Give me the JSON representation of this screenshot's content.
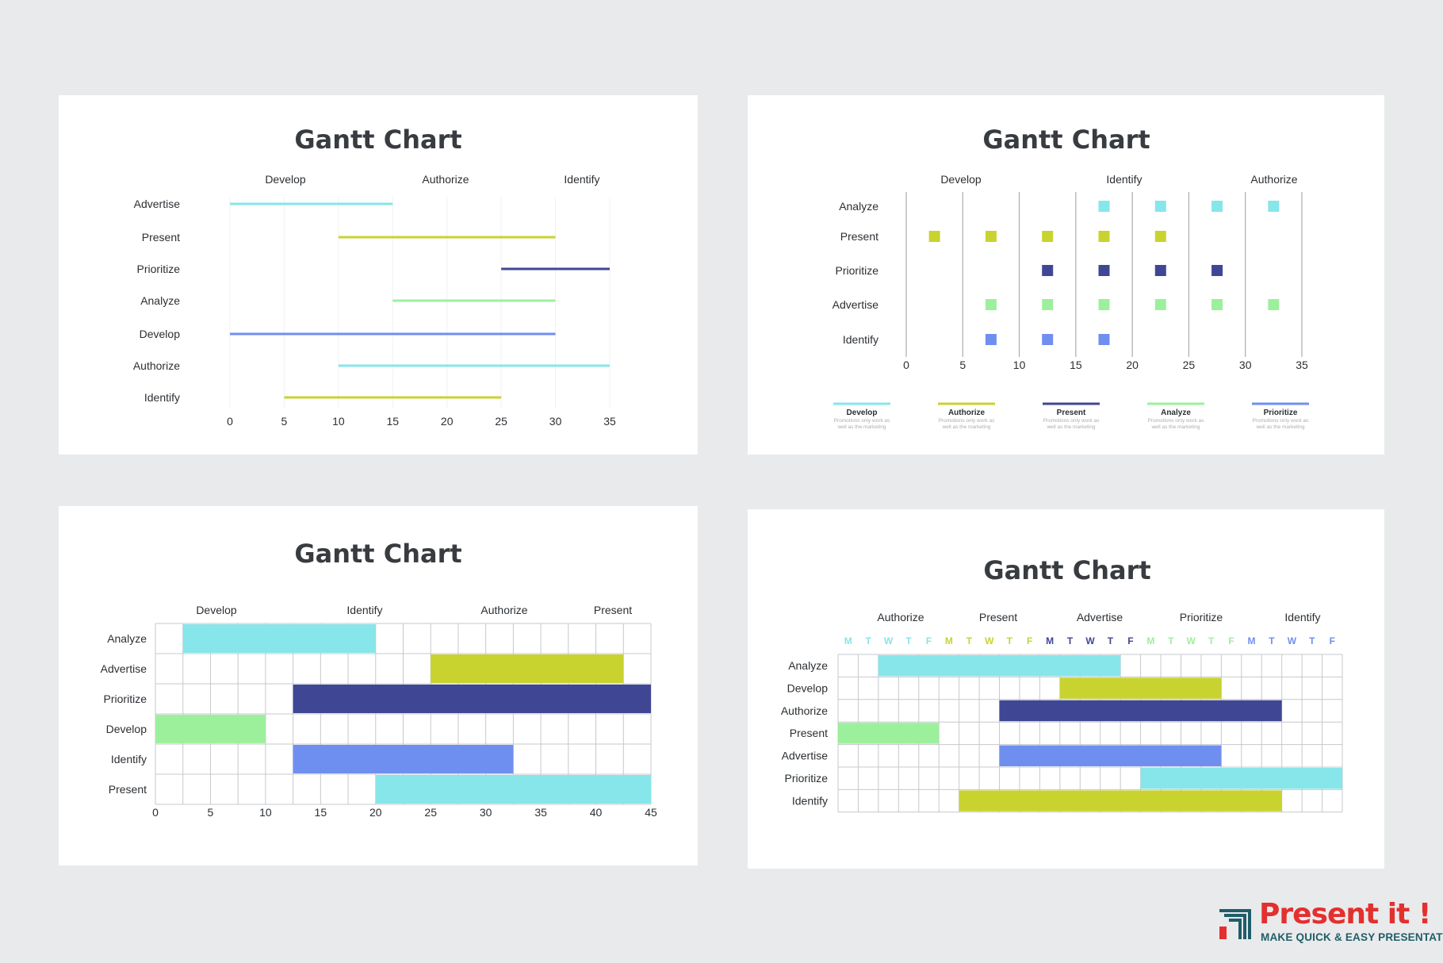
{
  "colors": {
    "cyan": "#86e6ea",
    "lime": "#c8d330",
    "navy": "#3f4795",
    "green": "#9cf09c",
    "blue": "#6f8ff0",
    "grid": "#c6c8cc",
    "text": "#2b2f33",
    "title": "#383c40"
  },
  "brand": {
    "name": "Present it !",
    "tagline": "MAKE QUICK & EASY PRESENTATIONS"
  },
  "chart_data": [
    {
      "type": "gantt",
      "title": "Gantt Chart",
      "header_labels": [
        "Develop",
        "Authorize",
        "Identify"
      ],
      "xlim": [
        0,
        35
      ],
      "x_ticks": [
        0,
        5,
        10,
        15,
        20,
        25,
        30,
        35
      ],
      "grid": true,
      "tasks": [
        {
          "name": "Advertise",
          "start": 0,
          "end": 15,
          "color": "cyan"
        },
        {
          "name": "Present",
          "start": 10,
          "end": 30,
          "color": "lime"
        },
        {
          "name": "Prioritize",
          "start": 25,
          "end": 35,
          "color": "navy"
        },
        {
          "name": "Analyze",
          "start": 15,
          "end": 30,
          "color": "green"
        },
        {
          "name": "Develop",
          "start": 0,
          "end": 30,
          "color": "blue"
        },
        {
          "name": "Authorize",
          "start": 10,
          "end": 35,
          "color": "cyan"
        },
        {
          "name": "Identify",
          "start": 5,
          "end": 25,
          "color": "lime"
        }
      ]
    },
    {
      "type": "scatter",
      "title": "Gantt Chart",
      "header_labels": [
        "Develop",
        "Identify",
        "Authorize"
      ],
      "xlim": [
        0,
        35
      ],
      "x_ticks": [
        0,
        5,
        10,
        15,
        20,
        25,
        30,
        35
      ],
      "grid": true,
      "rows": [
        {
          "name": "Analyze",
          "x": [
            17.5,
            22.5,
            27.5,
            32.5
          ],
          "color": "cyan"
        },
        {
          "name": "Present",
          "x": [
            2.5,
            7.5,
            12.5,
            17.5,
            22.5
          ],
          "color": "lime"
        },
        {
          "name": "Prioritize",
          "x": [
            12.5,
            17.5,
            22.5,
            27.5
          ],
          "color": "navy"
        },
        {
          "name": "Advertise",
          "x": [
            7.5,
            12.5,
            17.5,
            22.5,
            27.5,
            32.5
          ],
          "color": "green"
        },
        {
          "name": "Identify",
          "x": [
            7.5,
            12.5,
            17.5
          ],
          "color": "blue"
        }
      ],
      "legend_position": "bottom",
      "legend": [
        {
          "name": "Develop",
          "color": "cyan",
          "note": [
            "Promotions only work as",
            "well as the marketing"
          ]
        },
        {
          "name": "Authorize",
          "color": "lime",
          "note": [
            "Promotions only work as",
            "well as the marketing"
          ]
        },
        {
          "name": "Present",
          "color": "navy",
          "note": [
            "Promotions only work as",
            "well as the marketing"
          ]
        },
        {
          "name": "Analyze",
          "color": "green",
          "note": [
            "Promotions only work as",
            "well as the marketing"
          ]
        },
        {
          "name": "Prioritize",
          "color": "blue",
          "note": [
            "Promotions only work as",
            "well as the marketing"
          ]
        }
      ]
    },
    {
      "type": "gantt",
      "title": "Gantt Chart",
      "header_labels": [
        "Develop",
        "Identify",
        "Authorize",
        "Present"
      ],
      "xlim": [
        0,
        45
      ],
      "x_ticks": [
        0,
        5,
        10,
        15,
        20,
        25,
        30,
        35,
        40,
        45
      ],
      "grid": true,
      "tasks": [
        {
          "name": "Analyze",
          "start": 2.5,
          "end": 20,
          "color": "cyan"
        },
        {
          "name": "Advertise",
          "start": 25,
          "end": 42.5,
          "color": "lime"
        },
        {
          "name": "Prioritize",
          "start": 12.5,
          "end": 45,
          "color": "navy"
        },
        {
          "name": "Develop",
          "start": 0,
          "end": 10,
          "color": "green"
        },
        {
          "name": "Identify",
          "start": 12.5,
          "end": 32.5,
          "color": "blue"
        },
        {
          "name": "Present",
          "start": 20,
          "end": 45,
          "color": "cyan"
        }
      ]
    },
    {
      "type": "gantt",
      "title": "Gantt Chart",
      "header_labels": [
        "Authorize",
        "Present",
        "Advertise",
        "Prioritize",
        "Identify"
      ],
      "day_labels": [
        "M",
        "T",
        "W",
        "T",
        "F",
        "M",
        "T",
        "W",
        "T",
        "F",
        "M",
        "T",
        "W",
        "T",
        "F",
        "M",
        "T",
        "W",
        "T",
        "F",
        "M",
        "T",
        "W",
        "T",
        "F"
      ],
      "day_colors": [
        "cyan",
        "cyan",
        "cyan",
        "cyan",
        "cyan",
        "lime",
        "lime",
        "lime",
        "lime",
        "lime",
        "navy",
        "navy",
        "navy",
        "navy",
        "navy",
        "green",
        "green",
        "green",
        "green",
        "green",
        "blue",
        "blue",
        "blue",
        "blue",
        "blue"
      ],
      "xlim": [
        0,
        25
      ],
      "grid": true,
      "tasks": [
        {
          "name": "Analyze",
          "start": 2,
          "end": 14,
          "color": "cyan"
        },
        {
          "name": "Develop",
          "start": 11,
          "end": 19,
          "color": "lime"
        },
        {
          "name": "Authorize",
          "start": 8,
          "end": 22,
          "color": "navy"
        },
        {
          "name": "Present",
          "start": 0,
          "end": 5,
          "color": "green"
        },
        {
          "name": "Advertise",
          "start": 8,
          "end": 19,
          "color": "blue"
        },
        {
          "name": "Prioritize",
          "start": 15,
          "end": 25,
          "color": "cyan"
        },
        {
          "name": "Identify",
          "start": 6,
          "end": 22,
          "color": "lime"
        }
      ]
    }
  ]
}
